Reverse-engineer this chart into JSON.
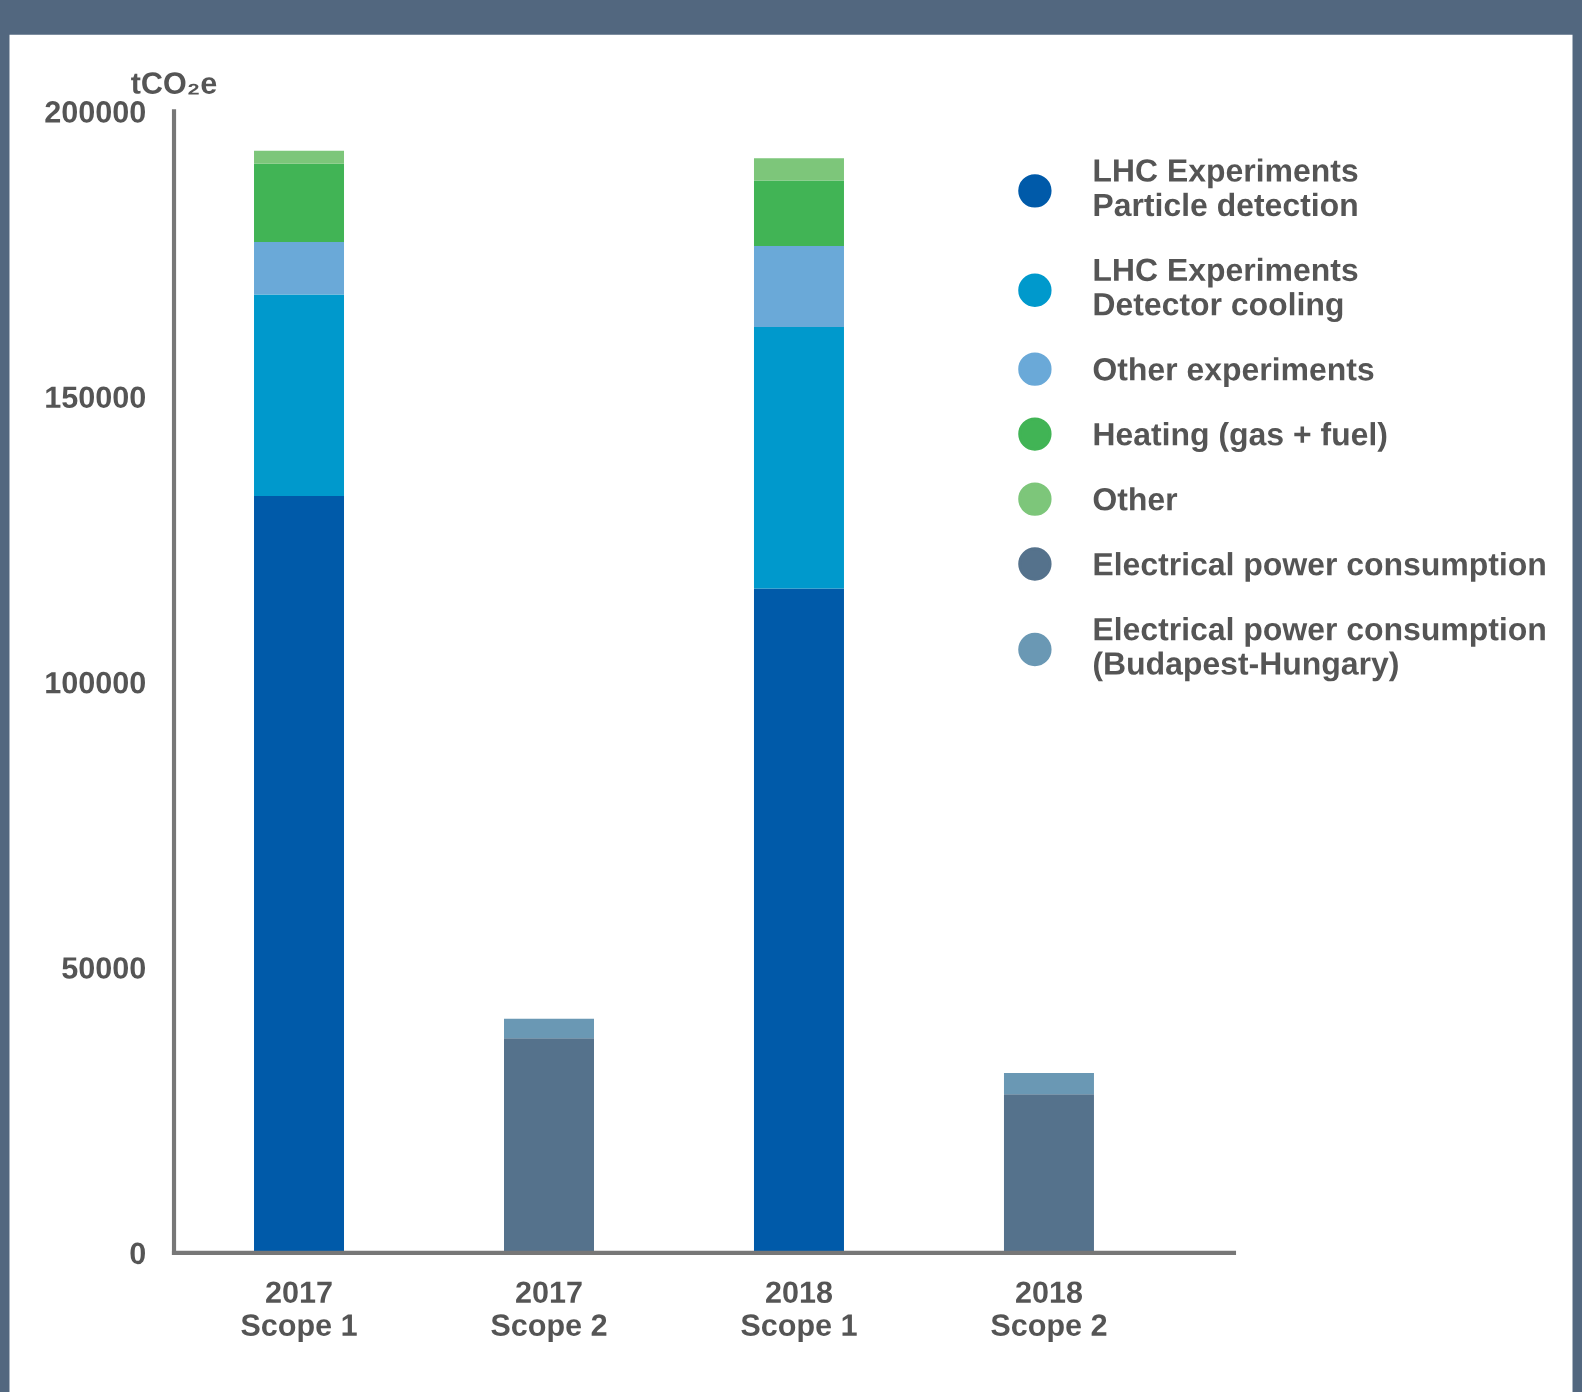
{
  "chart_data": {
    "type": "bar",
    "stacked": true,
    "ylabel": "tCO₂e",
    "categories": [
      "2017\nScope 1",
      "2017\nScope 2",
      "2018\nScope 1",
      "2018\nScope 2"
    ],
    "series": [
      {
        "name": "LHC Experiments\nParticle detection",
        "color": "#005aa9",
        "values": [
          132600,
          null,
          116400,
          null
        ]
      },
      {
        "name": "LHC Experiments\nDetector cooling",
        "color": "#0099cc",
        "values": [
          35300,
          null,
          45800,
          null
        ]
      },
      {
        "name": "Other experiments",
        "color": "#6aa9d8",
        "values": [
          9200,
          null,
          14200,
          null
        ]
      },
      {
        "name": "Heating (gas + fuel)",
        "color": "#41b455",
        "values": [
          13700,
          null,
          11500,
          null
        ]
      },
      {
        "name": "Other",
        "color": "#7dc67a",
        "values": [
          2300,
          null,
          3900,
          null
        ]
      },
      {
        "name": "Electrical power consumption",
        "color": "#55728c",
        "values": [
          null,
          37600,
          null,
          27800
        ]
      },
      {
        "name": "Electrical power consumption\n(Budapest-Hungary)",
        "color": "#6a98b4",
        "values": [
          null,
          3400,
          null,
          3700
        ]
      }
    ],
    "ylim": [
      0,
      200000
    ],
    "yticks": [
      0,
      50000,
      100000,
      150000,
      200000
    ],
    "grid": false,
    "legend": "top right",
    "marker": "circle"
  }
}
